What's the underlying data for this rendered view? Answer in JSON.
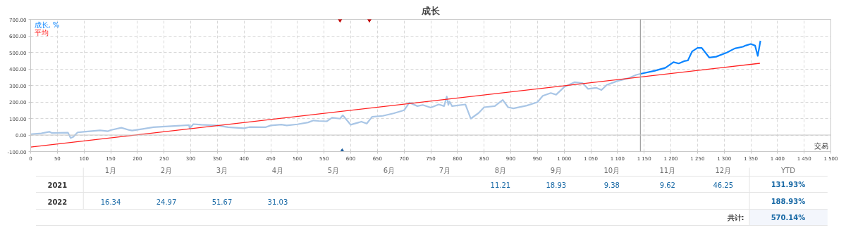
{
  "chart_data": {
    "type": "line",
    "title": "成长",
    "xlabel": "交易",
    "xlim": [
      0,
      1500
    ],
    "ylim": [
      -100,
      700
    ],
    "xticks": [
      0,
      50,
      100,
      150,
      200,
      250,
      300,
      350,
      400,
      450,
      500,
      550,
      600,
      650,
      700,
      750,
      800,
      850,
      900,
      950,
      {
        "value": 1000,
        "label": "1 000"
      },
      {
        "value": 1050,
        "label": "1 050"
      },
      {
        "value": 1100,
        "label": "1 100"
      },
      {
        "value": 1150,
        "label": "1 150"
      },
      {
        "value": 1200,
        "label": "1 200"
      },
      {
        "value": 1250,
        "label": "1 250"
      },
      {
        "value": 1300,
        "label": "1 300"
      },
      {
        "value": 1350,
        "label": "1 350"
      },
      {
        "value": 1400,
        "label": "1 400"
      },
      {
        "value": 1450,
        "label": "1 450"
      },
      {
        "value": 1500,
        "label": "1 500"
      }
    ],
    "yticks": [
      {
        "value": -100,
        "label": "-100.00"
      },
      {
        "value": 0,
        "label": "0.00"
      },
      {
        "value": 100,
        "label": "100.00"
      },
      {
        "value": 200,
        "label": "200.00"
      },
      {
        "value": 300,
        "label": "300.00"
      },
      {
        "value": 400,
        "label": "400.00"
      },
      {
        "value": 500,
        "label": "500.00"
      },
      {
        "value": 600,
        "label": "600.00"
      },
      {
        "value": 700,
        "label": "700.00"
      }
    ],
    "grid": true,
    "legend": "top left",
    "line_style": "solid",
    "series": [
      {
        "color": "#a9c6e6",
        "x": [
          0,
          20,
          35,
          40,
          70,
          75,
          80,
          88,
          100,
          130,
          145,
          150,
          170,
          185,
          190,
          210,
          230,
          297,
          298,
          305,
          320,
          350,
          370,
          400,
          410,
          440,
          450,
          470,
          480,
          500,
          520,
          530,
          540,
          555,
          565,
          580,
          585,
          600,
          620,
          630,
          640,
          660,
          680,
          700,
          710,
          725,
          735,
          750,
          765,
          775,
          780,
          783,
          785,
          790,
          815,
          825,
          840,
          850,
          870,
          885,
          895,
          905,
          930,
          950,
          960,
          975,
          985,
          1000,
          1020,
          1035,
          1045,
          1060,
          1070,
          1080,
          1100,
          1120,
          1135,
          1143
        ],
        "values": [
          5,
          10,
          20,
          12,
          14,
          -18,
          -11,
          16,
          20,
          28,
          23,
          30,
          44,
          30,
          27,
          37,
          47,
          60,
          40,
          66,
          62,
          58,
          47,
          41,
          48,
          47,
          58,
          63,
          58,
          65,
          76,
          88,
          85,
          83,
          105,
          99,
          120,
          62,
          81,
          69,
          110,
          116,
          131,
          150,
          196,
          175,
          182,
          166,
          185,
          175,
          233,
          182,
          203,
          175,
          185,
          99,
          134,
          168,
          175,
          212,
          168,
          161,
          178,
          199,
          237,
          254,
          244,
          290,
          320,
          313,
          279,
          286,
          272,
          303,
          327,
          343,
          364,
          370
        ]
      },
      {
        "name": "成长, %",
        "color": "#0a84ff",
        "x": [
          1143,
          1170,
          1190,
          1205,
          1215,
          1225,
          1232,
          1240,
          1250,
          1258,
          1272,
          1285,
          1305,
          1320,
          1335,
          1340,
          1350,
          1358,
          1363,
          1368
        ],
        "values": [
          370,
          389,
          407,
          441,
          433,
          447,
          451,
          506,
          527,
          527,
          469,
          474,
          499,
          524,
          534,
          541,
          551,
          541,
          479,
          570
        ]
      },
      {
        "name": "平均",
        "color": "#ff2020",
        "x": [
          0,
          1367
        ],
        "values": [
          -73,
          434
        ]
      },
      {
        "type": "scatter",
        "marker": "triangle",
        "color": "#c00000",
        "x": [
          580,
          635
        ],
        "values": [
          700,
          700
        ]
      },
      {
        "type": "scatter",
        "marker": "triangle",
        "color": "#1f5f9f",
        "x": [
          584
        ],
        "values": [
          -100
        ]
      }
    ],
    "ref_lines": [
      {
        "axis": "x",
        "value": 1143,
        "color": "#a0a0a0"
      },
      {
        "axis": "y",
        "value": 0,
        "color": "#c8c8c8"
      }
    ],
    "annotations": [
      "1月",
      "2月",
      "3月",
      "4月",
      "5月",
      "6月",
      "7月",
      "8月",
      "9月",
      "10月",
      "11月",
      "12月",
      "YTD",
      "2021",
      null,
      null,
      null,
      null,
      null,
      null,
      null,
      "11.21",
      "18.93",
      "9.38",
      "9.62",
      "46.25",
      "131.93%",
      "2022",
      "16.34",
      "24.97",
      "51.67",
      "31.03",
      null,
      null,
      null,
      null,
      null,
      null,
      null,
      null,
      "188.93%",
      "共计:",
      "570.14%"
    ]
  }
}
